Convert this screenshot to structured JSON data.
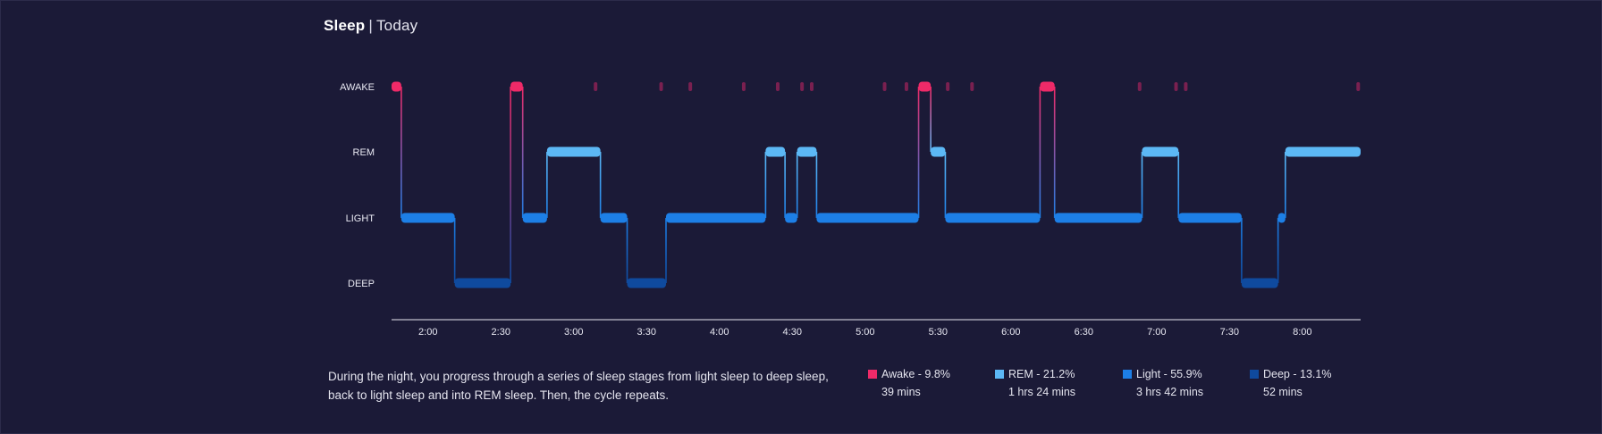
{
  "header": {
    "title": "Sleep",
    "separator": "|",
    "period": "Today"
  },
  "description": "During the night, you progress through a series of sleep stages from light sleep to deep sleep, back to light sleep and into REM sleep. Then, the cycle repeats.",
  "colors": {
    "background": "#1b1a37",
    "awake": "#ef2a68",
    "rem": "#5cb8f5",
    "light": "#1d7fe6",
    "deep": "#0f4a9e",
    "awake_dim": "#7a2050"
  },
  "legend": [
    {
      "key": "awake",
      "label": "Awake - 9.8%",
      "duration": "39 mins",
      "color": "#ef2a68"
    },
    {
      "key": "rem",
      "label": "REM - 21.2%",
      "duration": "1 hrs 24 mins",
      "color": "#5cb8f5"
    },
    {
      "key": "light",
      "label": "Light - 55.9%",
      "duration": "3 hrs 42 mins",
      "color": "#1d7fe6"
    },
    {
      "key": "deep",
      "label": "Deep - 13.1%",
      "duration": "52 mins",
      "color": "#0f4a9e"
    }
  ],
  "chart_data": {
    "type": "step",
    "title": "Sleep",
    "subtitle": "Today",
    "y_categories": [
      "AWAKE",
      "REM",
      "LIGHT",
      "DEEP"
    ],
    "x_ticks": [
      "2:00",
      "2:30",
      "3:00",
      "3:30",
      "4:00",
      "4:30",
      "5:00",
      "5:30",
      "6:00",
      "6:30",
      "7:00",
      "7:30",
      "8:00"
    ],
    "x_range_minutes": [
      105,
      504
    ],
    "segments": [
      {
        "stage": "AWAKE",
        "start": 105,
        "end": 109
      },
      {
        "stage": "LIGHT",
        "start": 109,
        "end": 131
      },
      {
        "stage": "DEEP",
        "start": 131,
        "end": 154
      },
      {
        "stage": "AWAKE",
        "start": 154,
        "end": 159
      },
      {
        "stage": "LIGHT",
        "start": 159,
        "end": 169
      },
      {
        "stage": "REM",
        "start": 169,
        "end": 191
      },
      {
        "stage": "LIGHT",
        "start": 191,
        "end": 202
      },
      {
        "stage": "DEEP",
        "start": 202,
        "end": 218
      },
      {
        "stage": "LIGHT",
        "start": 218,
        "end": 259
      },
      {
        "stage": "REM",
        "start": 259,
        "end": 267
      },
      {
        "stage": "LIGHT",
        "start": 267,
        "end": 272
      },
      {
        "stage": "REM",
        "start": 272,
        "end": 280
      },
      {
        "stage": "LIGHT",
        "start": 280,
        "end": 322
      },
      {
        "stage": "AWAKE",
        "start": 322,
        "end": 327
      },
      {
        "stage": "REM",
        "start": 327,
        "end": 333
      },
      {
        "stage": "LIGHT",
        "start": 333,
        "end": 372
      },
      {
        "stage": "AWAKE",
        "start": 372,
        "end": 378
      },
      {
        "stage": "LIGHT",
        "start": 378,
        "end": 414
      },
      {
        "stage": "REM",
        "start": 414,
        "end": 429
      },
      {
        "stage": "LIGHT",
        "start": 429,
        "end": 455
      },
      {
        "stage": "DEEP",
        "start": 455,
        "end": 470
      },
      {
        "stage": "LIGHT",
        "start": 470,
        "end": 473
      },
      {
        "stage": "REM",
        "start": 473,
        "end": 504
      }
    ],
    "brief_awakenings": [
      189,
      216,
      228,
      250,
      264,
      274,
      278,
      308,
      317,
      334,
      344,
      413,
      428,
      432,
      503
    ]
  }
}
